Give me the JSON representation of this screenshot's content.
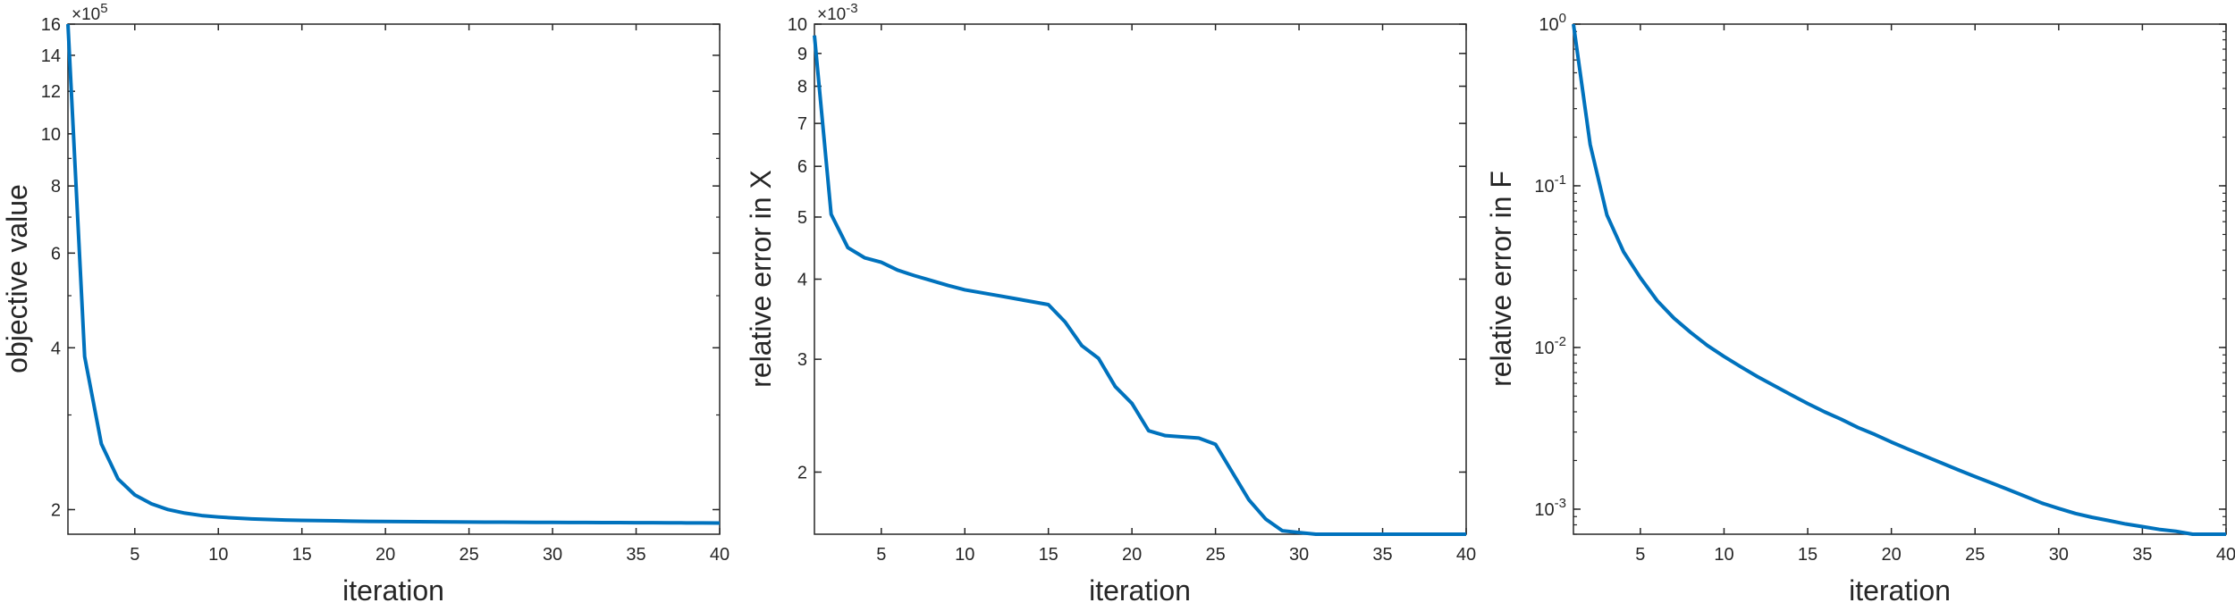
{
  "colors": {
    "line": "#0072BD",
    "axis": "#262626",
    "background": "#ffffff"
  },
  "chart_data": [
    {
      "type": "line",
      "title": "",
      "xlabel": "iteration",
      "ylabel": "objective value",
      "xscale": "linear",
      "yscale": "log",
      "xlim": [
        1,
        40
      ],
      "ylim": [
        180000,
        1600000
      ],
      "grid": false,
      "legend": "none",
      "x_ticks": [
        5,
        10,
        15,
        20,
        25,
        30,
        35,
        40
      ],
      "x_tick_labels": [
        "5",
        "10",
        "15",
        "20",
        "25",
        "30",
        "35",
        "40"
      ],
      "y_ticks": [
        200000,
        400000,
        600000,
        800000,
        1000000,
        1200000,
        1400000,
        1600000
      ],
      "y_tick_labels": [
        "2",
        "4",
        "6",
        "8",
        "10",
        "12",
        "14",
        "16"
      ],
      "y_multiplier": {
        "base": "×10",
        "exp": "5"
      },
      "x": [
        1,
        2,
        3,
        4,
        5,
        6,
        7,
        8,
        9,
        10,
        11,
        12,
        13,
        14,
        15,
        16,
        17,
        18,
        19,
        20,
        21,
        22,
        23,
        24,
        25,
        26,
        27,
        28,
        29,
        30,
        31,
        32,
        33,
        34,
        35,
        36,
        37,
        38,
        39,
        40
      ],
      "series": [
        {
          "values": [
            1600000,
            385000,
            265000,
            228000,
            213000,
            205000,
            200000,
            197000,
            195000,
            193800,
            192900,
            192200,
            191700,
            191300,
            191000,
            190800,
            190600,
            190400,
            190200,
            190100,
            190000,
            189900,
            189800,
            189700,
            189600,
            189550,
            189500,
            189450,
            189400,
            189350,
            189300,
            189250,
            189200,
            189150,
            189100,
            189050,
            189000,
            188950,
            188900,
            188850
          ]
        }
      ]
    },
    {
      "type": "line",
      "title": "",
      "xlabel": "iteration",
      "ylabel": "relative error in X",
      "xscale": "linear",
      "yscale": "log",
      "xlim": [
        1,
        40
      ],
      "ylim": [
        0.0016,
        0.01
      ],
      "grid": false,
      "legend": "none",
      "x_ticks": [
        5,
        10,
        15,
        20,
        25,
        30,
        35,
        40
      ],
      "x_tick_labels": [
        "5",
        "10",
        "15",
        "20",
        "25",
        "30",
        "35",
        "40"
      ],
      "y_ticks": [
        0.002,
        0.003,
        0.004,
        0.005,
        0.006,
        0.007,
        0.008,
        0.009,
        0.01
      ],
      "y_tick_labels": [
        "2",
        "3",
        "4",
        "5",
        "6",
        "7",
        "8",
        "9",
        "10"
      ],
      "y_multiplier": {
        "base": "×10",
        "exp": "-3"
      },
      "x": [
        1,
        2,
        3,
        4,
        5,
        6,
        7,
        8,
        9,
        10,
        11,
        12,
        13,
        14,
        15,
        16,
        17,
        18,
        19,
        20,
        21,
        22,
        23,
        24,
        25,
        26,
        27,
        28,
        29,
        30,
        31,
        32,
        33,
        34,
        35,
        36,
        37,
        38,
        39,
        40
      ],
      "series": [
        {
          "values": [
            0.0096,
            0.00505,
            0.00448,
            0.00432,
            0.00425,
            0.00413,
            0.00405,
            0.00398,
            0.00391,
            0.00385,
            0.00381,
            0.00377,
            0.00373,
            0.00369,
            0.00365,
            0.00343,
            0.00315,
            0.00301,
            0.00272,
            0.00256,
            0.00232,
            0.00228,
            0.00227,
            0.00226,
            0.00221,
            0.002,
            0.00181,
            0.00169,
            0.00162,
            0.00161,
            0.0016,
            0.0016,
            0.00159,
            0.00159,
            0.00158,
            0.00158,
            0.00157,
            0.00157,
            0.00155,
            0.0015
          ]
        }
      ]
    },
    {
      "type": "line",
      "title": "",
      "xlabel": "iteration",
      "ylabel": "relative error in F",
      "xscale": "linear",
      "yscale": "log",
      "xlim": [
        1,
        40
      ],
      "ylim": [
        0.0007,
        1
      ],
      "grid": false,
      "legend": "none",
      "x_ticks": [
        5,
        10,
        15,
        20,
        25,
        30,
        35,
        40
      ],
      "x_tick_labels": [
        "5",
        "10",
        "15",
        "20",
        "25",
        "30",
        "35",
        "40"
      ],
      "y_ticks": [
        0.001,
        0.01,
        0.1,
        1
      ],
      "y_tick_labels": [
        {
          "base": "10",
          "exp": "-3"
        },
        {
          "base": "10",
          "exp": "-2"
        },
        {
          "base": "10",
          "exp": "-1"
        },
        {
          "base": "10",
          "exp": "0"
        }
      ],
      "x": [
        1,
        2,
        3,
        4,
        5,
        6,
        7,
        8,
        9,
        10,
        11,
        12,
        13,
        14,
        15,
        16,
        17,
        18,
        19,
        20,
        21,
        22,
        23,
        24,
        25,
        26,
        27,
        28,
        29,
        30,
        31,
        32,
        33,
        34,
        35,
        36,
        37,
        38,
        39,
        40
      ],
      "series": [
        {
          "values": [
            1.0,
            0.18,
            0.066,
            0.039,
            0.027,
            0.0195,
            0.0152,
            0.0124,
            0.0103,
            0.0088,
            0.0076,
            0.0066,
            0.0058,
            0.0051,
            0.0045,
            0.004,
            0.0036,
            0.0032,
            0.0029,
            0.0026,
            0.00235,
            0.00213,
            0.00193,
            0.00175,
            0.00159,
            0.00145,
            0.00132,
            0.0012,
            0.00109,
            0.00101,
            0.00094,
            0.00089,
            0.00085,
            0.00081,
            0.00078,
            0.00075,
            0.00073,
            0.0007,
            0.00068,
            0.00065
          ]
        }
      ]
    }
  ]
}
